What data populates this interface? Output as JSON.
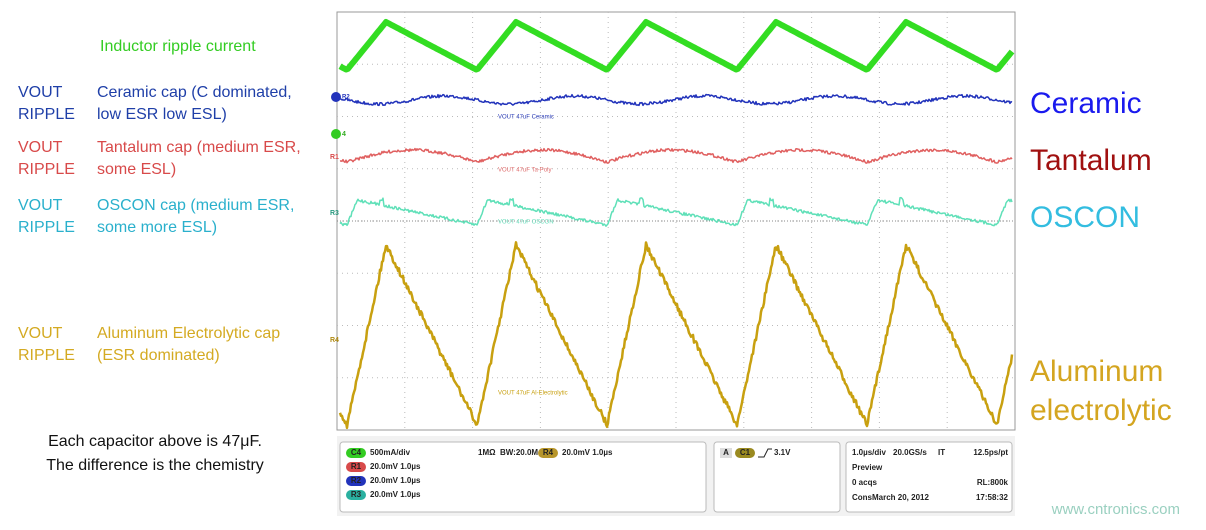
{
  "left_notes": {
    "top_label": "Inductor ripple current",
    "rows": [
      {
        "prefix": [
          "VOUT",
          "RIPPLE"
        ],
        "lines": [
          "Ceramic cap (C dominated,",
          "low ESR low ESL)"
        ]
      },
      {
        "prefix": [
          "VOUT",
          "RIPPLE"
        ],
        "lines": [
          "Tantalum cap (medium ESR,",
          "some ESL)"
        ]
      },
      {
        "prefix": [
          "VOUT",
          "RIPPLE"
        ],
        "lines": [
          "OSCON cap (medium ESR,",
          "some more ESL)"
        ]
      },
      {
        "prefix": [
          "VOUT",
          "RIPPLE"
        ],
        "lines": [
          "Aluminum Electrolytic cap",
          "(ESR dominated)"
        ]
      }
    ],
    "footnote": [
      "Each capacitor above is 47μF.",
      "The difference is the chemistry"
    ]
  },
  "right_labels": [
    "Ceramic",
    "Tantalum",
    "OSCON",
    "Aluminum",
    "electrolytic"
  ],
  "scope": {
    "trace_labels": [
      "VOUT 47uF Ceramic",
      "VOUT 47uF Ta-Poly",
      "VOUT 47uF OSCON",
      "VOUT 47uF Al-Electrolytic"
    ],
    "markers": [
      "R2",
      "4",
      "R1",
      "R3",
      "R4"
    ],
    "status": {
      "channels": [
        {
          "badge": "C4",
          "text": "500mA/div"
        },
        {
          "badge": "R1",
          "text": "20.0mV 1.0µs"
        },
        {
          "badge": "R2",
          "text": "20.0mV 1.0µs"
        },
        {
          "badge": "R3",
          "text": "20.0mV 1.0µs"
        }
      ],
      "impedance": "1MΩ",
      "bandwidth": "BW:20.0M",
      "ref4": {
        "badge": "R4",
        "text": "20.0mV 1.0µs"
      },
      "trigger": {
        "mode": "A",
        "source": "C1",
        "level": "3.1V"
      },
      "acq": [
        "1.0µs/div",
        "20.0GS/s",
        "IT",
        "12.5ps/pt",
        "Preview",
        "0 acqs",
        "RL:800k",
        "Cons",
        "March 20, 2012",
        "17:58:32"
      ]
    }
  },
  "watermark": "www.cntronics.com"
}
